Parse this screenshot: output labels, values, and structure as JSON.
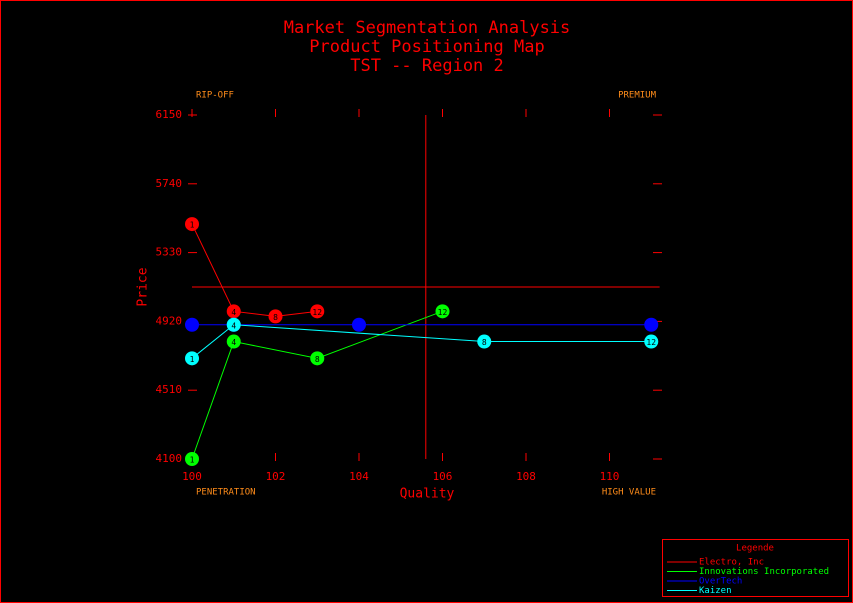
{
  "chart_data": {
    "type": "line",
    "title": [
      "Market Segmentation Analysis",
      "Product Positioning Map",
      "TST -- Region 2"
    ],
    "x_label": "Quality",
    "y_label": "Price",
    "corner_labels": {
      "top_left": "RIP-OFF",
      "top_right": "PREMIUM",
      "bottom_left": "PENETRATION",
      "bottom_right": "HIGH VALUE"
    },
    "legend_title": "Legende",
    "xlim": [
      100,
      111.2
    ],
    "xticks": [
      100,
      102,
      104,
      106,
      108,
      110
    ],
    "ylim": [
      4100,
      6150
    ],
    "yticks": [
      4100,
      4510,
      4920,
      5330,
      5740,
      6150
    ],
    "reference_x": 105.6,
    "reference_y": 5125,
    "series": [
      {
        "name": "Electro, Inc",
        "color": "#ff0000",
        "x": [
          100,
          101,
          102,
          103
        ],
        "values": [
          5500,
          4980,
          4950,
          4980
        ],
        "point_labels": [
          "1",
          "4",
          "8",
          "12"
        ]
      },
      {
        "name": "Innovations Incorporated",
        "color": "#00ff00",
        "x": [
          100,
          101,
          103,
          106
        ],
        "values": [
          4100,
          4800,
          4700,
          4980
        ],
        "point_labels": [
          "1",
          "4",
          "8",
          "12"
        ]
      },
      {
        "name": "OverTech",
        "color": "#0000ff",
        "x": [
          100,
          101,
          104,
          111
        ],
        "values": [
          4900,
          4900,
          4900,
          4900
        ]
      },
      {
        "name": "Kaizen",
        "color": "#00ffff",
        "x": [
          100,
          101,
          107,
          111
        ],
        "values": [
          4700,
          4900,
          4800,
          4800
        ],
        "point_labels": [
          "1",
          "4",
          "8",
          "12"
        ]
      }
    ]
  }
}
